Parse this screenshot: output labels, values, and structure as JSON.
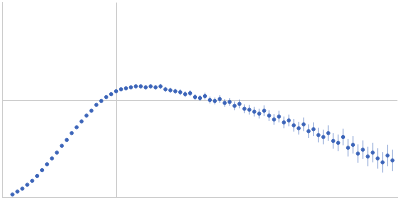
{
  "chart_data": {
    "type": "scatter",
    "x": [
      10,
      15,
      20,
      25,
      30,
      35,
      40,
      45,
      50,
      55,
      60,
      65,
      70,
      75,
      80,
      85,
      90,
      95,
      100,
      105,
      110,
      115,
      120,
      125,
      130,
      135,
      140,
      145,
      150,
      155,
      160,
      165,
      170,
      175,
      180,
      185,
      190,
      195,
      200,
      205,
      210,
      215,
      220,
      225,
      230,
      235,
      240,
      245,
      250,
      255,
      260,
      265,
      270,
      275,
      280,
      285,
      290,
      295,
      300,
      305,
      310,
      315,
      320,
      325,
      330,
      335,
      340,
      345,
      350,
      355,
      360,
      365,
      370,
      375,
      380,
      385,
      390,
      395
    ],
    "values": [
      3,
      6,
      9,
      13,
      17,
      22,
      28,
      34,
      40,
      46,
      53,
      59,
      66,
      72,
      78,
      84,
      89,
      95,
      99,
      103,
      106,
      109,
      111,
      112,
      113,
      114,
      114,
      113,
      114,
      113,
      114,
      111,
      110,
      109,
      108,
      106,
      107,
      103,
      102,
      104,
      100,
      99,
      101,
      97,
      98,
      94,
      96,
      91,
      90,
      88,
      86,
      89,
      84,
      80,
      83,
      77,
      79,
      74,
      71,
      75,
      68,
      70,
      64,
      62,
      66,
      58,
      56,
      62,
      51,
      54,
      45,
      49,
      42,
      46,
      40,
      36,
      43,
      38
    ],
    "errors": [
      0.5,
      0.5,
      0.5,
      0.5,
      0.5,
      0.5,
      0.5,
      0.5,
      0.5,
      0.5,
      0.5,
      0.5,
      0.5,
      0.5,
      0.5,
      0.5,
      0.5,
      0.5,
      1,
      1,
      1,
      1.5,
      1.5,
      1.5,
      1.5,
      2,
      2,
      2,
      2,
      2,
      2.5,
      2.5,
      2.5,
      2.5,
      3,
      3,
      3,
      3,
      3,
      3.5,
      3.5,
      3.5,
      4,
      4,
      4,
      4.5,
      4.5,
      4.5,
      5,
      5,
      5,
      5.5,
      5.5,
      5.5,
      6,
      6,
      6,
      6.5,
      6.5,
      7,
      7,
      7,
      7.5,
      7.5,
      8,
      8,
      8.5,
      8.5,
      9,
      9,
      9.5,
      9.5,
      10,
      10,
      10.5,
      10.5,
      11,
      11
    ],
    "color": "#3a63b8",
    "xlim": [
      0,
      400
    ],
    "ylim": [
      0,
      200
    ],
    "xticks": [
      115
    ],
    "yticks": [
      100
    ],
    "grid": true,
    "tick_labels": false,
    "marker": "circle"
  }
}
